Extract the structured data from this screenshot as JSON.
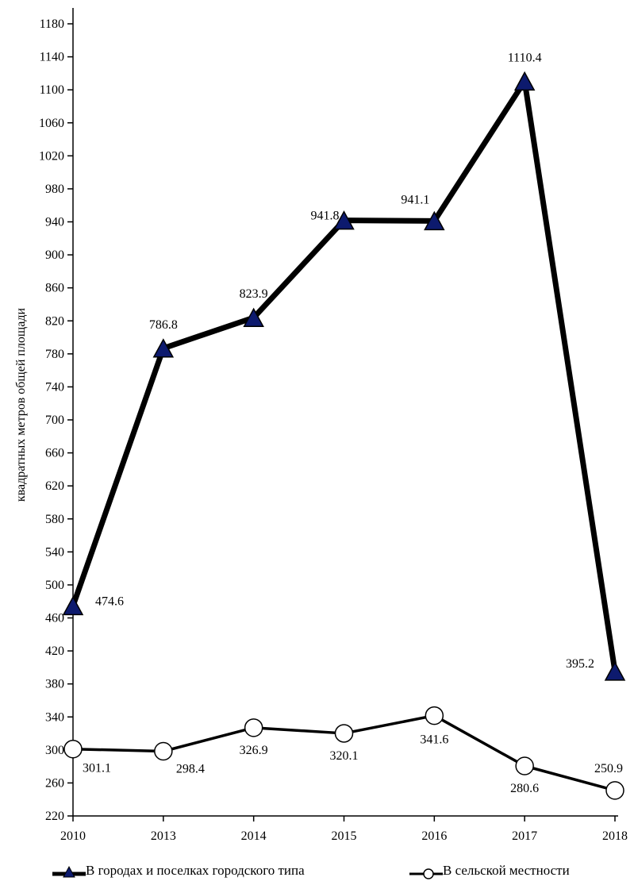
{
  "chart_data": {
    "type": "line",
    "categories": [
      "2010",
      "2013",
      "2014",
      "2015",
      "2016",
      "2017",
      "2018"
    ],
    "ylabel": "квадратных метров общей площади",
    "ylim": [
      220,
      1180
    ],
    "yticks": [
      220,
      260,
      300,
      340,
      380,
      420,
      460,
      500,
      540,
      580,
      620,
      660,
      700,
      740,
      780,
      820,
      860,
      900,
      940,
      980,
      1020,
      1060,
      1100,
      1140,
      1180
    ],
    "legend_position": "bottom",
    "grid": false,
    "series": [
      {
        "name": "В городах и поселках городского типа",
        "values": [
          474.6,
          786.8,
          823.9,
          941.8,
          941.1,
          1110.4,
          395.2
        ],
        "labels": [
          "474.6",
          "786.8",
          "823.9",
          "941.8",
          "941.1",
          "1110.4",
          "395.2"
        ],
        "marker": "triangle",
        "color": "#000000",
        "marker_fill": "#0d1a6e"
      },
      {
        "name": "В сельской местности",
        "values": [
          301.1,
          298.4,
          326.9,
          320.1,
          341.6,
          280.6,
          250.9
        ],
        "labels": [
          "301.1",
          "298.4",
          "326.9",
          "320.1",
          "341.6",
          "280.6",
          "250.9"
        ],
        "marker": "circle",
        "color": "#000000",
        "marker_fill": "#ffffff"
      }
    ]
  }
}
